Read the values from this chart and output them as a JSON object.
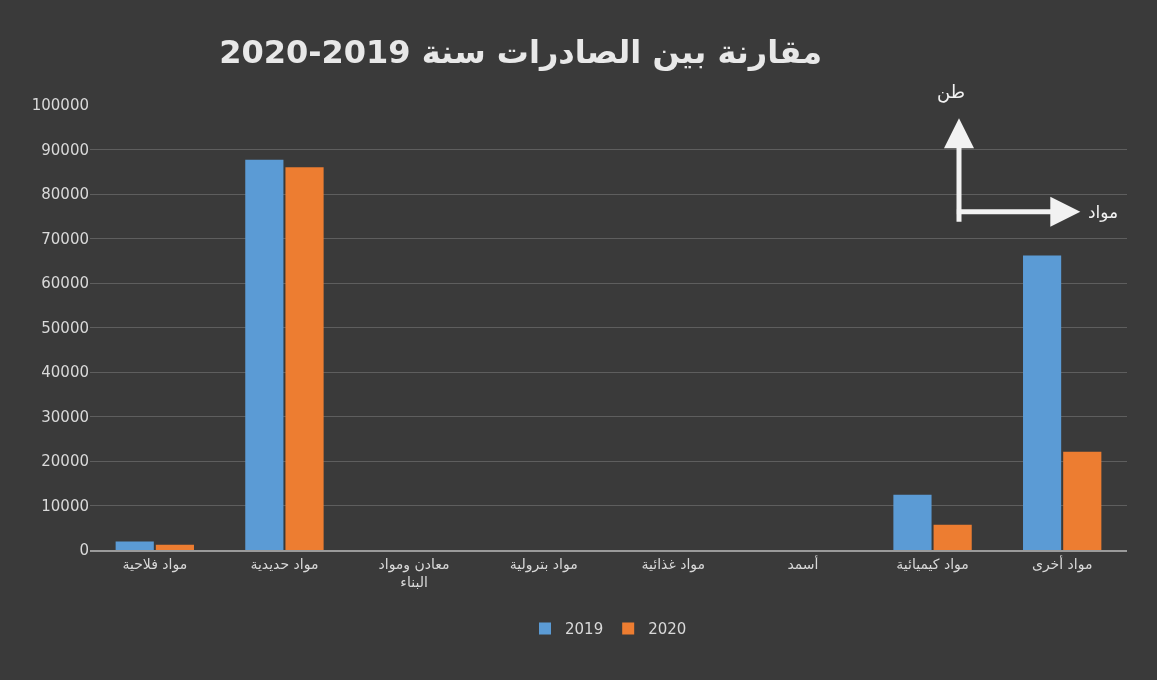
{
  "chart_data": {
    "type": "bar",
    "title": "مقارنة بين الصادرات سنة 2019-2020",
    "categories": [
      "مواد فلاحية",
      "مواد حديدية",
      "معادن ومواد البناء",
      "مواد بترولية",
      "مواد غذائية",
      "أسمد",
      "مواد كيميائية",
      "مواد أخرى"
    ],
    "series": [
      {
        "name": "2019",
        "color": "#5b9bd5",
        "values": [
          1900,
          87700,
          0,
          0,
          0,
          0,
          12400,
          66200
        ]
      },
      {
        "name": "2020",
        "color": "#ed7d31",
        "values": [
          1200,
          86000,
          0,
          0,
          0,
          0,
          5700,
          22100
        ]
      }
    ],
    "ylim": [
      0,
      100000
    ],
    "yticks": [
      0,
      10000,
      20000,
      30000,
      40000,
      50000,
      60000,
      70000,
      80000,
      90000,
      100000
    ],
    "grid": "y",
    "legend": "bottom",
    "annotations": [
      "طن",
      "مواد"
    ]
  }
}
